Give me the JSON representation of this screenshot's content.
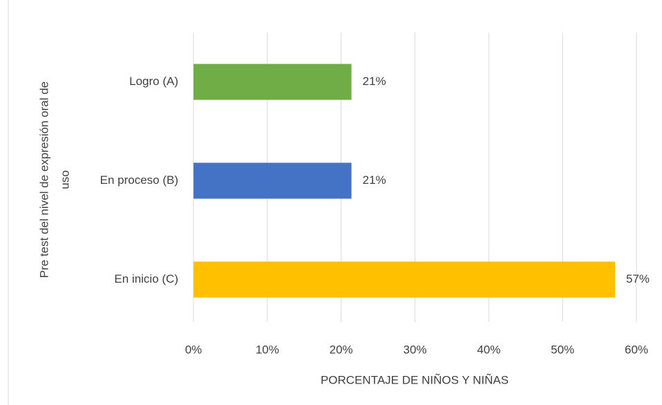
{
  "chart_data": {
    "type": "bar",
    "orientation": "horizontal",
    "categories": [
      "Logro (A)",
      "En proceso (B)",
      "En inicio (C)"
    ],
    "values": [
      21.4,
      21.4,
      57.1
    ],
    "value_labels": [
      "21%",
      "21%",
      "57%"
    ],
    "colors": [
      "#70ad47",
      "#4472c4",
      "#ffc000"
    ],
    "xlabel": "PORCENTAJE  DE NIÑOS Y NIÑAS",
    "ylabel": [
      "Pre test del nivel de expresión oral de",
      "uso"
    ],
    "xlim": [
      0,
      60
    ],
    "xticks": [
      {
        "value": 0,
        "label": "0%"
      },
      {
        "value": 10,
        "label": "10%"
      },
      {
        "value": 20,
        "label": "20%"
      },
      {
        "value": 30,
        "label": "30%"
      },
      {
        "value": 40,
        "label": "40%"
      },
      {
        "value": 50,
        "label": "50%"
      },
      {
        "value": 60,
        "label": "60%"
      }
    ],
    "grid": true
  }
}
